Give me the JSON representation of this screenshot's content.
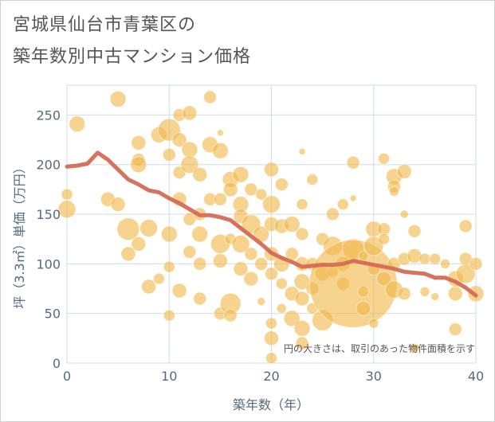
{
  "title_line1": "宮城県仙台市青葉区の",
  "title_line2": "築年数別中古マンション価格",
  "chart_data": {
    "type": "scatter",
    "xlabel": "築年数（年）",
    "ylabel": "坪（3.3㎡）単価（万円）",
    "xlim": [
      0,
      40
    ],
    "ylim": [
      0,
      280
    ],
    "xticks": [
      0,
      10,
      20,
      30,
      40
    ],
    "yticks": [
      0,
      50,
      100,
      150,
      200,
      250
    ],
    "grid": true,
    "note": "円の大きさは、取引のあった物件面積を示す",
    "colors": {
      "bubble": "#f0b84a",
      "trend": "#d46a55",
      "grid": "#d0dbe5",
      "axis": "#556b7a"
    },
    "points": [
      [
        0,
        170,
        7
      ],
      [
        0,
        155,
        11
      ],
      [
        1,
        241,
        10
      ],
      [
        4,
        165,
        9
      ],
      [
        5,
        266,
        10
      ],
      [
        5,
        160,
        9
      ],
      [
        6,
        135,
        14
      ],
      [
        6,
        110,
        9
      ],
      [
        7,
        222,
        9
      ],
      [
        7,
        205,
        8
      ],
      [
        7,
        200,
        10
      ],
      [
        7,
        120,
        9
      ],
      [
        8,
        136,
        11
      ],
      [
        8,
        77,
        9
      ],
      [
        9,
        230,
        10
      ],
      [
        9,
        85,
        7
      ],
      [
        10,
        235,
        14
      ],
      [
        10,
        210,
        8
      ],
      [
        10,
        130,
        10
      ],
      [
        10,
        97,
        7
      ],
      [
        10,
        48,
        7
      ],
      [
        11,
        250,
        8
      ],
      [
        11,
        225,
        9
      ],
      [
        11,
        192,
        8
      ],
      [
        11,
        165,
        9
      ],
      [
        11,
        73,
        9
      ],
      [
        12,
        252,
        9
      ],
      [
        12,
        215,
        10
      ],
      [
        12,
        200,
        11
      ],
      [
        12,
        145,
        8
      ],
      [
        12,
        112,
        8
      ],
      [
        13,
        190,
        9
      ],
      [
        13,
        150,
        8
      ],
      [
        13,
        130,
        10
      ],
      [
        13,
        100,
        8
      ],
      [
        13,
        65,
        8
      ],
      [
        14,
        268,
        8
      ],
      [
        14,
        220,
        10
      ],
      [
        14,
        165,
        8
      ],
      [
        15,
        232,
        4
      ],
      [
        15,
        214,
        10
      ],
      [
        15,
        165,
        8
      ],
      [
        15,
        120,
        12
      ],
      [
        15,
        103,
        9
      ],
      [
        15,
        50,
        8
      ],
      [
        16,
        185,
        10
      ],
      [
        16,
        175,
        9
      ],
      [
        16,
        125,
        7
      ],
      [
        16,
        60,
        13
      ],
      [
        16,
        48,
        8
      ],
      [
        17,
        190,
        10
      ],
      [
        17,
        160,
        10
      ],
      [
        17,
        148,
        9
      ],
      [
        17,
        120,
        11
      ],
      [
        17,
        95,
        9
      ],
      [
        18,
        175,
        8
      ],
      [
        18,
        140,
        12
      ],
      [
        18,
        110,
        8
      ],
      [
        18,
        85,
        9
      ],
      [
        19,
        170,
        7
      ],
      [
        19,
        130,
        10
      ],
      [
        19,
        100,
        8
      ],
      [
        19,
        62,
        5
      ],
      [
        20,
        195,
        9
      ],
      [
        20,
        160,
        11
      ],
      [
        20,
        140,
        9
      ],
      [
        20,
        110,
        9
      ],
      [
        20,
        90,
        8
      ],
      [
        20,
        40,
        7
      ],
      [
        20,
        25,
        9
      ],
      [
        20,
        5,
        7
      ],
      [
        21,
        180,
        8
      ],
      [
        21,
        138,
        9
      ],
      [
        21,
        100,
        10
      ],
      [
        21,
        80,
        7
      ],
      [
        21,
        55,
        6
      ],
      [
        22,
        140,
        10
      ],
      [
        22,
        110,
        8
      ],
      [
        22,
        70,
        9
      ],
      [
        22,
        45,
        10
      ],
      [
        23,
        213,
        4
      ],
      [
        23,
        160,
        7
      ],
      [
        23,
        130,
        8
      ],
      [
        23,
        100,
        9
      ],
      [
        23,
        82,
        10
      ],
      [
        23,
        65,
        9
      ],
      [
        23,
        35,
        10
      ],
      [
        23,
        20,
        8
      ],
      [
        24,
        185,
        7
      ],
      [
        24,
        100,
        8
      ],
      [
        24,
        75,
        8
      ],
      [
        24,
        55,
        7
      ],
      [
        25,
        125,
        8
      ],
      [
        25,
        90,
        9
      ],
      [
        25,
        43,
        13
      ],
      [
        26,
        150,
        8
      ],
      [
        26,
        118,
        12
      ],
      [
        26,
        92,
        7
      ],
      [
        27,
        100,
        9
      ],
      [
        27,
        80,
        8
      ],
      [
        27,
        160,
        7
      ],
      [
        28,
        202,
        8
      ],
      [
        28,
        166,
        4
      ],
      [
        28,
        115,
        13
      ],
      [
        28,
        80,
        55
      ],
      [
        29,
        108,
        6
      ],
      [
        29,
        72,
        7
      ],
      [
        29,
        55,
        9
      ],
      [
        30,
        135,
        10
      ],
      [
        30,
        118,
        12
      ],
      [
        30,
        95,
        8
      ],
      [
        30,
        40,
        6
      ],
      [
        31,
        206,
        7
      ],
      [
        31,
        135,
        8
      ],
      [
        31,
        85,
        9
      ],
      [
        31,
        125,
        7
      ],
      [
        32,
        188,
        10
      ],
      [
        32,
        178,
        8
      ],
      [
        32,
        173,
        6
      ],
      [
        32,
        100,
        8
      ],
      [
        32,
        74,
        11
      ],
      [
        33,
        193,
        9
      ],
      [
        33,
        150,
        5
      ],
      [
        33,
        105,
        8
      ],
      [
        33,
        70,
        8
      ],
      [
        34,
        133,
        8
      ],
      [
        34,
        108,
        9
      ],
      [
        34,
        15,
        6
      ],
      [
        35,
        105,
        7
      ],
      [
        35,
        72,
        6
      ],
      [
        36,
        105,
        7
      ],
      [
        36,
        67,
        5
      ],
      [
        37,
        100,
        6
      ],
      [
        38,
        34,
        8
      ],
      [
        38,
        70,
        9
      ],
      [
        38,
        85,
        10
      ],
      [
        39,
        138,
        8
      ],
      [
        39,
        105,
        8
      ],
      [
        39,
        90,
        12
      ],
      [
        40,
        70,
        10
      ],
      [
        40,
        100,
        8
      ]
    ],
    "trend": [
      [
        0,
        198
      ],
      [
        1,
        199
      ],
      [
        2,
        201
      ],
      [
        3,
        212
      ],
      [
        4,
        205
      ],
      [
        5,
        195
      ],
      [
        6,
        185
      ],
      [
        7,
        180
      ],
      [
        8,
        174
      ],
      [
        9,
        172
      ],
      [
        10,
        166
      ],
      [
        11,
        161
      ],
      [
        12,
        155
      ],
      [
        13,
        149
      ],
      [
        14,
        149
      ],
      [
        15,
        147
      ],
      [
        16,
        144
      ],
      [
        17,
        136
      ],
      [
        18,
        128
      ],
      [
        19,
        120
      ],
      [
        20,
        111
      ],
      [
        21,
        106
      ],
      [
        22,
        102
      ],
      [
        23,
        97
      ],
      [
        24,
        98
      ],
      [
        25,
        99
      ],
      [
        26,
        99
      ],
      [
        27,
        100
      ],
      [
        28,
        103
      ],
      [
        29,
        101
      ],
      [
        30,
        99
      ],
      [
        31,
        97
      ],
      [
        32,
        95
      ],
      [
        33,
        92
      ],
      [
        34,
        91
      ],
      [
        35,
        90
      ],
      [
        36,
        86
      ],
      [
        37,
        86
      ],
      [
        38,
        82
      ],
      [
        39,
        76
      ],
      [
        40,
        68
      ]
    ]
  }
}
